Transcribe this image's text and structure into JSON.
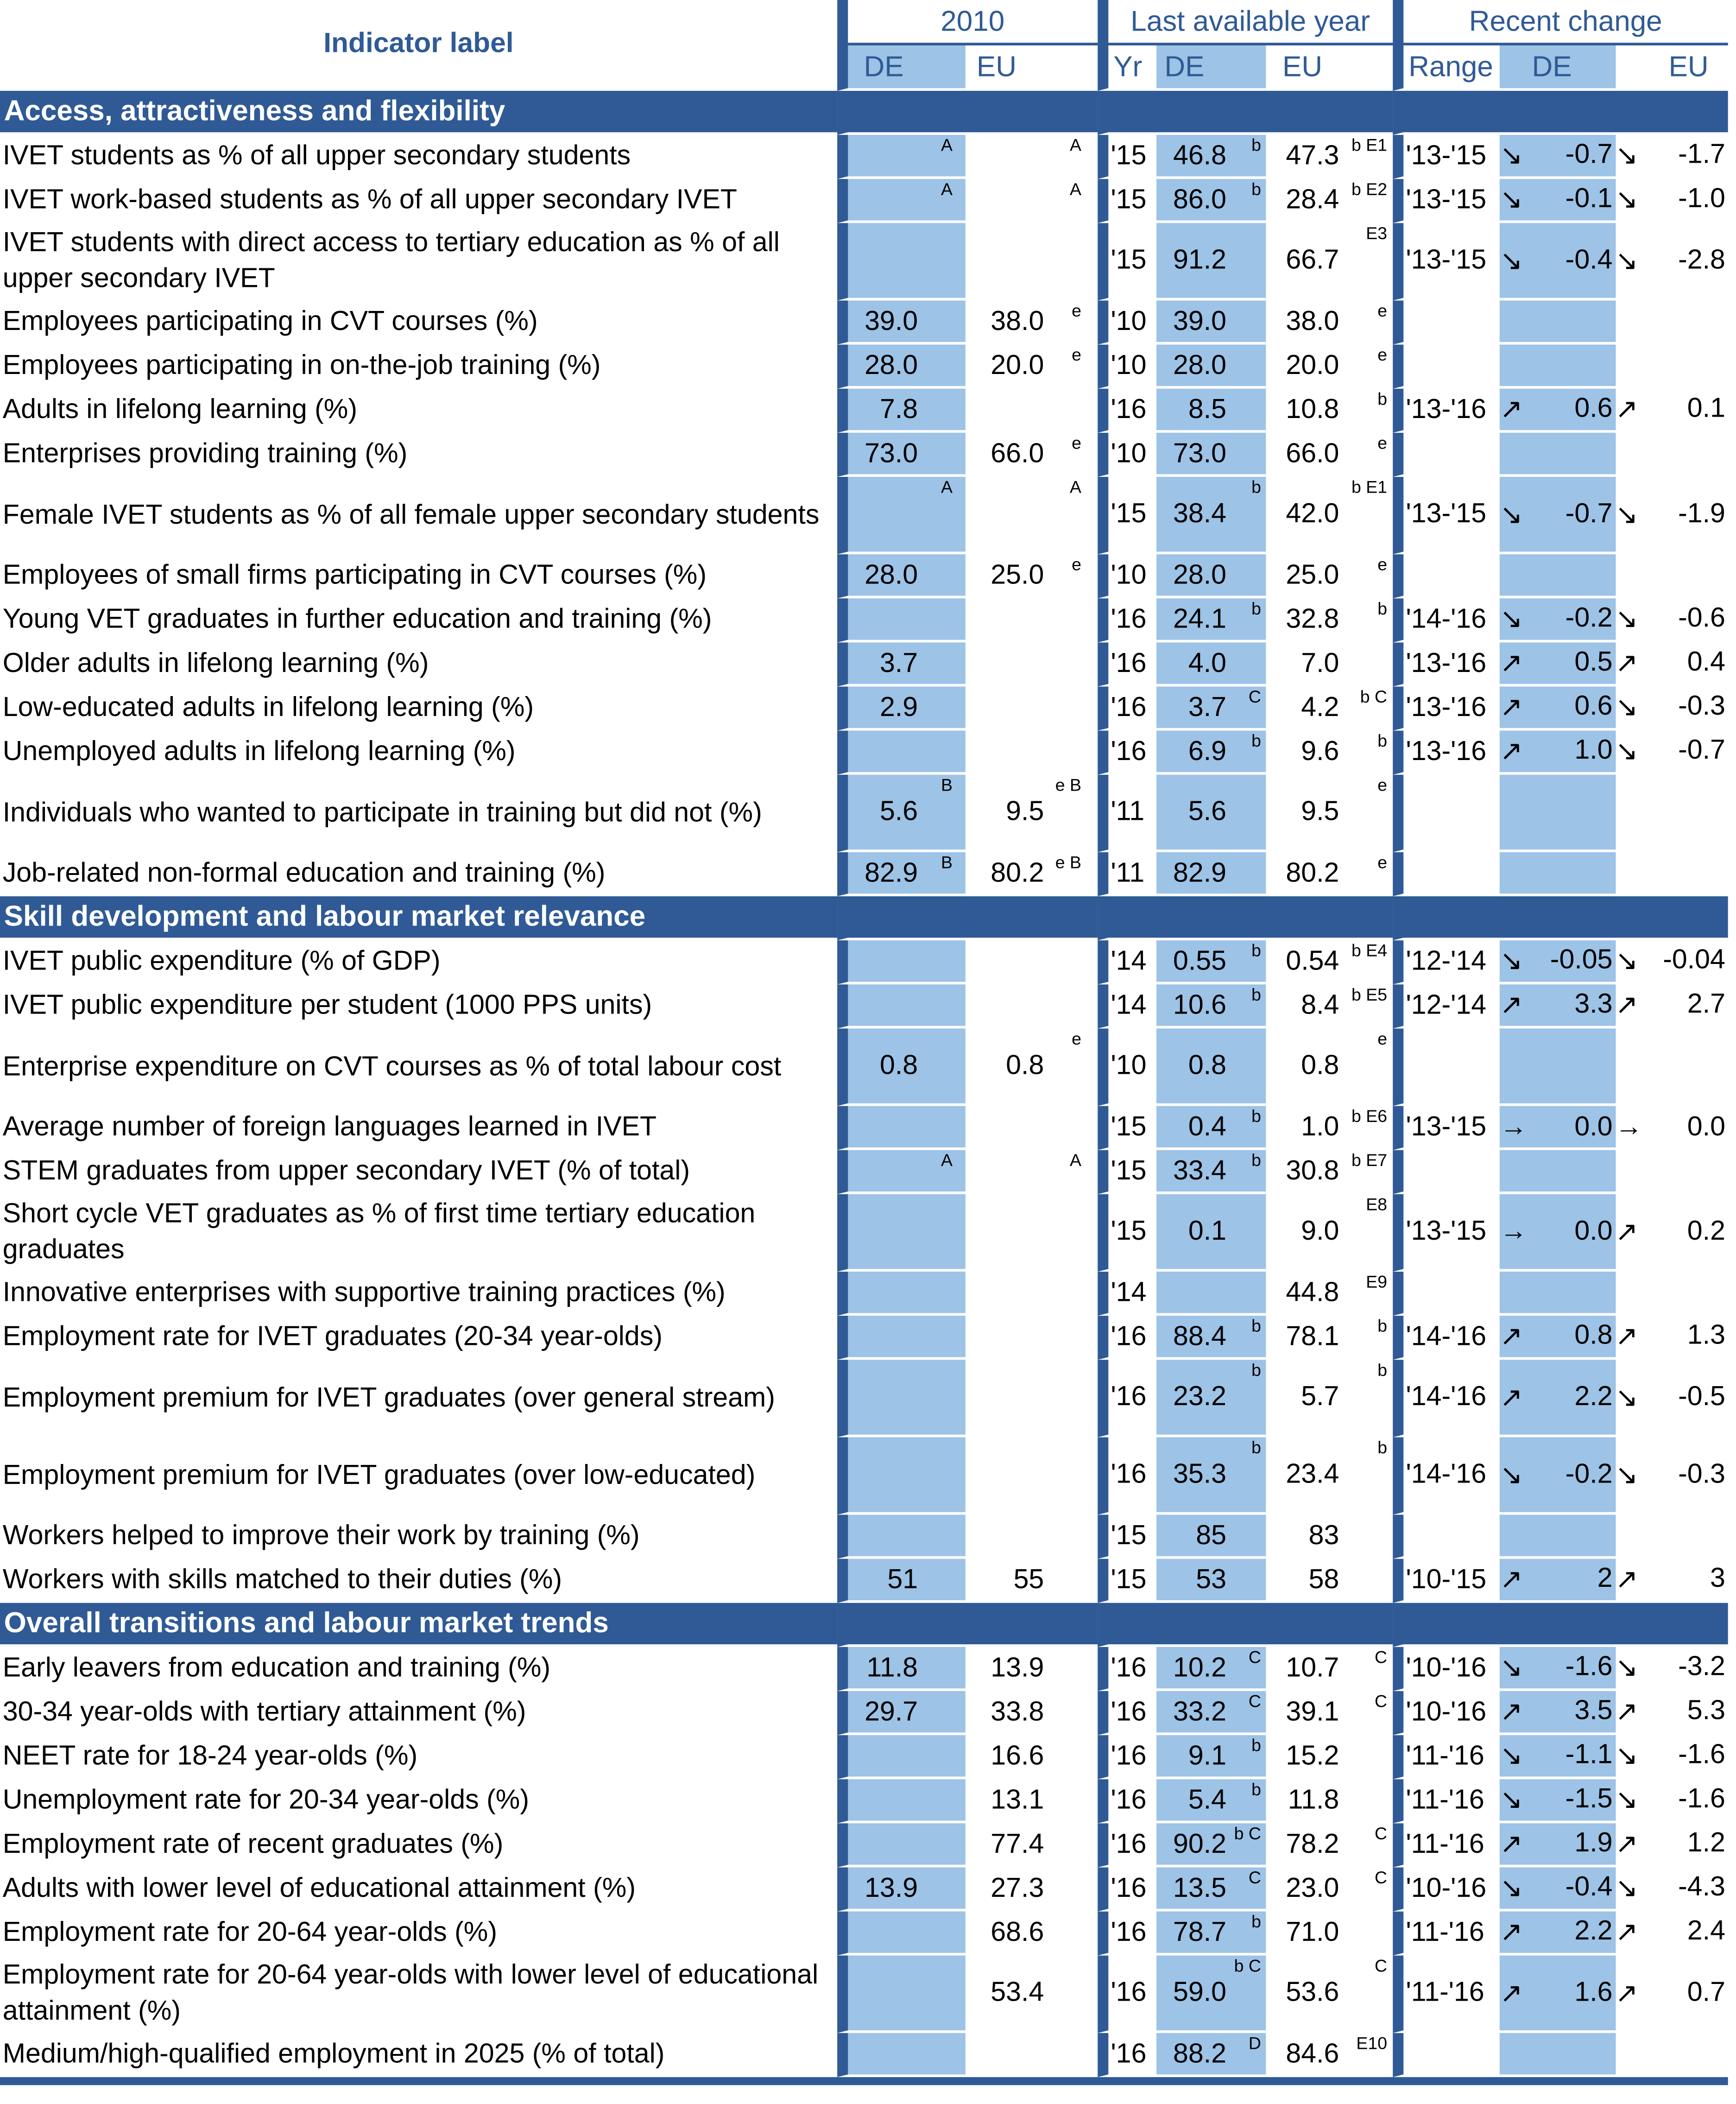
{
  "header": {
    "indicator_label": "Indicator label",
    "group_2010": "2010",
    "group_last": "Last available year",
    "group_recent": "Recent change",
    "sub_de": "DE",
    "sub_eu": "EU",
    "sub_yr": "Yr",
    "sub_range": "Range"
  },
  "sections": [
    {
      "title": "Access, attractiveness and flexibility",
      "rows": [
        {
          "label": "IVET students as % of all upper secondary students",
          "de2010": "",
          "de2010_sup": "A",
          "eu2010": "",
          "eu2010_sup": "A",
          "yr": "'15",
          "de": "46.8",
          "de_sup": "b",
          "eu": "47.3",
          "eu_sup": "b E1",
          "range": "'13-'15",
          "de_arrow": "↘",
          "de_chg": "-0.7",
          "eu_arrow": "↘",
          "eu_chg": "-1.7"
        },
        {
          "label": "IVET work-based students as % of all upper secondary IVET",
          "de2010": "",
          "de2010_sup": "A",
          "eu2010": "",
          "eu2010_sup": "A",
          "yr": "'15",
          "de": "86.0",
          "de_sup": "b",
          "eu": "28.4",
          "eu_sup": "b E2",
          "range": "'13-'15",
          "de_arrow": "↘",
          "de_chg": "-0.1",
          "eu_arrow": "↘",
          "eu_chg": "-1.0"
        },
        {
          "label": "IVET students with direct access to tertiary education as % of all upper secondary IVET",
          "two": true,
          "de2010": "",
          "de2010_sup": "",
          "eu2010": "",
          "eu2010_sup": "",
          "yr": "'15",
          "de": "91.2",
          "de_sup": "",
          "eu": "66.7",
          "eu_sup": "E3",
          "range": "'13-'15",
          "de_arrow": "↘",
          "de_chg": "-0.4",
          "eu_arrow": "↘",
          "eu_chg": "-2.8"
        },
        {
          "label": "Employees participating in CVT courses (%)",
          "de2010": "39.0",
          "de2010_sup": "",
          "eu2010": "38.0",
          "eu2010_sup": "e",
          "yr": "'10",
          "de": "39.0",
          "de_sup": "",
          "eu": "38.0",
          "eu_sup": "e",
          "range": "",
          "de_arrow": "",
          "de_chg": "",
          "eu_arrow": "",
          "eu_chg": ""
        },
        {
          "label": "Employees participating in on-the-job training (%)",
          "de2010": "28.0",
          "de2010_sup": "",
          "eu2010": "20.0",
          "eu2010_sup": "e",
          "yr": "'10",
          "de": "28.0",
          "de_sup": "",
          "eu": "20.0",
          "eu_sup": "e",
          "range": "",
          "de_arrow": "",
          "de_chg": "",
          "eu_arrow": "",
          "eu_chg": ""
        },
        {
          "label": "Adults in lifelong learning (%)",
          "de2010": "7.8",
          "de2010_sup": "",
          "eu2010": "",
          "eu2010_sup": "",
          "yr": "'16",
          "de": "8.5",
          "de_sup": "",
          "eu": "10.8",
          "eu_sup": "b",
          "range": "'13-'16",
          "de_arrow": "↗",
          "de_chg": "0.6",
          "eu_arrow": "↗",
          "eu_chg": "0.1"
        },
        {
          "label": "Enterprises providing training (%)",
          "de2010": "73.0",
          "de2010_sup": "",
          "eu2010": "66.0",
          "eu2010_sup": "e",
          "yr": "'10",
          "de": "73.0",
          "de_sup": "",
          "eu": "66.0",
          "eu_sup": "e",
          "range": "",
          "de_arrow": "",
          "de_chg": "",
          "eu_arrow": "",
          "eu_chg": ""
        },
        {
          "label": "Female IVET students as % of all female upper secondary students",
          "two": true,
          "de2010": "",
          "de2010_sup": "A",
          "eu2010": "",
          "eu2010_sup": "A",
          "yr": "'15",
          "de": "38.4",
          "de_sup": "b",
          "eu": "42.0",
          "eu_sup": "b E1",
          "range": "'13-'15",
          "de_arrow": "↘",
          "de_chg": "-0.7",
          "eu_arrow": "↘",
          "eu_chg": "-1.9"
        },
        {
          "label": "Employees of small firms participating in CVT courses (%)",
          "de2010": "28.0",
          "de2010_sup": "",
          "eu2010": "25.0",
          "eu2010_sup": "e",
          "yr": "'10",
          "de": "28.0",
          "de_sup": "",
          "eu": "25.0",
          "eu_sup": "e",
          "range": "",
          "de_arrow": "",
          "de_chg": "",
          "eu_arrow": "",
          "eu_chg": ""
        },
        {
          "label": "Young VET graduates in further education and training (%)",
          "de2010": "",
          "de2010_sup": "",
          "eu2010": "",
          "eu2010_sup": "",
          "yr": "'16",
          "de": "24.1",
          "de_sup": "b",
          "eu": "32.8",
          "eu_sup": "b",
          "range": "'14-'16",
          "de_arrow": "↘",
          "de_chg": "-0.2",
          "eu_arrow": "↘",
          "eu_chg": "-0.6"
        },
        {
          "label": "Older adults in lifelong learning (%)",
          "de2010": "3.7",
          "de2010_sup": "",
          "eu2010": "",
          "eu2010_sup": "",
          "yr": "'16",
          "de": "4.0",
          "de_sup": "",
          "eu": "7.0",
          "eu_sup": "",
          "range": "'13-'16",
          "de_arrow": "↗",
          "de_chg": "0.5",
          "eu_arrow": "↗",
          "eu_chg": "0.4"
        },
        {
          "label": "Low-educated adults in lifelong learning (%)",
          "de2010": "2.9",
          "de2010_sup": "",
          "eu2010": "",
          "eu2010_sup": "",
          "yr": "'16",
          "de": "3.7",
          "de_sup": "C",
          "eu": "4.2",
          "eu_sup": "b C",
          "range": "'13-'16",
          "de_arrow": "↗",
          "de_chg": "0.6",
          "eu_arrow": "↘",
          "eu_chg": "-0.3"
        },
        {
          "label": "Unemployed adults in lifelong learning (%)",
          "de2010": "",
          "de2010_sup": "",
          "eu2010": "",
          "eu2010_sup": "",
          "yr": "'16",
          "de": "6.9",
          "de_sup": "b",
          "eu": "9.6",
          "eu_sup": "b",
          "range": "'13-'16",
          "de_arrow": "↗",
          "de_chg": "1.0",
          "eu_arrow": "↘",
          "eu_chg": "-0.7"
        },
        {
          "label": "Individuals who wanted to participate in training but did not (%)",
          "two": true,
          "de2010": "5.6",
          "de2010_sup": "B",
          "eu2010": "9.5",
          "eu2010_sup": "e B",
          "yr": "'11",
          "de": "5.6",
          "de_sup": "",
          "eu": "9.5",
          "eu_sup": "e",
          "range": "",
          "de_arrow": "",
          "de_chg": "",
          "eu_arrow": "",
          "eu_chg": ""
        },
        {
          "label": "Job-related non-formal education and training (%)",
          "de2010": "82.9",
          "de2010_sup": "B",
          "eu2010": "80.2",
          "eu2010_sup": "e B",
          "yr": "'11",
          "de": "82.9",
          "de_sup": "",
          "eu": "80.2",
          "eu_sup": "e",
          "range": "",
          "de_arrow": "",
          "de_chg": "",
          "eu_arrow": "",
          "eu_chg": ""
        }
      ]
    },
    {
      "title": "Skill development and labour market relevance",
      "rows": [
        {
          "label": "IVET public expenditure (% of GDP)",
          "de2010": "",
          "de2010_sup": "",
          "eu2010": "",
          "eu2010_sup": "",
          "yr": "'14",
          "de": "0.55",
          "de_sup": "b",
          "eu": "0.54",
          "eu_sup": "b E4",
          "range": "'12-'14",
          "de_arrow": "↘",
          "de_chg": "-0.05",
          "eu_arrow": "↘",
          "eu_chg": "-0.04"
        },
        {
          "label": "IVET public expenditure per student (1000 PPS units)",
          "de2010": "",
          "de2010_sup": "",
          "eu2010": "",
          "eu2010_sup": "",
          "yr": "'14",
          "de": "10.6",
          "de_sup": "b",
          "eu": "8.4",
          "eu_sup": "b E5",
          "range": "'12-'14",
          "de_arrow": "↗",
          "de_chg": "3.3",
          "eu_arrow": "↗",
          "eu_chg": "2.7"
        },
        {
          "label": "Enterprise expenditure on CVT courses as % of total labour cost",
          "two": true,
          "de2010": "0.8",
          "de2010_sup": "",
          "eu2010": "0.8",
          "eu2010_sup": "e",
          "yr": "'10",
          "de": "0.8",
          "de_sup": "",
          "eu": "0.8",
          "eu_sup": "e",
          "range": "",
          "de_arrow": "",
          "de_chg": "",
          "eu_arrow": "",
          "eu_chg": ""
        },
        {
          "label": "Average number of foreign languages learned in IVET",
          "de2010": "",
          "de2010_sup": "",
          "eu2010": "",
          "eu2010_sup": "",
          "yr": "'15",
          "de": "0.4",
          "de_sup": "b",
          "eu": "1.0",
          "eu_sup": "b E6",
          "range": "'13-'15",
          "de_arrow": "→",
          "de_chg": "0.0",
          "eu_arrow": "→",
          "eu_chg": "0.0"
        },
        {
          "label": "STEM graduates from upper secondary IVET (% of total)",
          "de2010": "",
          "de2010_sup": "A",
          "eu2010": "",
          "eu2010_sup": "A",
          "yr": "'15",
          "de": "33.4",
          "de_sup": "b",
          "eu": "30.8",
          "eu_sup": "b E7",
          "range": "",
          "de_arrow": "",
          "de_chg": "",
          "eu_arrow": "",
          "eu_chg": ""
        },
        {
          "label": "Short cycle VET graduates as % of first time tertiary education graduates",
          "two": true,
          "de2010": "",
          "de2010_sup": "",
          "eu2010": "",
          "eu2010_sup": "",
          "yr": "'15",
          "de": "0.1",
          "de_sup": "",
          "eu": "9.0",
          "eu_sup": "E8",
          "range": "'13-'15",
          "de_arrow": "→",
          "de_chg": "0.0",
          "eu_arrow": "↗",
          "eu_chg": "0.2"
        },
        {
          "label": "Innovative enterprises with supportive training practices (%)",
          "de2010": "",
          "de2010_sup": "",
          "eu2010": "",
          "eu2010_sup": "",
          "yr": "'14",
          "de": "",
          "de_sup": "",
          "eu": "44.8",
          "eu_sup": "E9",
          "range": "",
          "de_arrow": "",
          "de_chg": "",
          "eu_arrow": "",
          "eu_chg": ""
        },
        {
          "label": "Employment rate for IVET graduates (20-34 year-olds)",
          "de2010": "",
          "de2010_sup": "",
          "eu2010": "",
          "eu2010_sup": "",
          "yr": "'16",
          "de": "88.4",
          "de_sup": "b",
          "eu": "78.1",
          "eu_sup": "b",
          "range": "'14-'16",
          "de_arrow": "↗",
          "de_chg": "0.8",
          "eu_arrow": "↗",
          "eu_chg": "1.3"
        },
        {
          "label": "Employment premium for IVET graduates (over general stream)",
          "two": true,
          "de2010": "",
          "de2010_sup": "",
          "eu2010": "",
          "eu2010_sup": "",
          "yr": "'16",
          "de": "23.2",
          "de_sup": "b",
          "eu": "5.7",
          "eu_sup": "b",
          "range": "'14-'16",
          "de_arrow": "↗",
          "de_chg": "2.2",
          "eu_arrow": "↘",
          "eu_chg": "-0.5"
        },
        {
          "label": "Employment premium for IVET graduates (over low-educated)",
          "two": true,
          "de2010": "",
          "de2010_sup": "",
          "eu2010": "",
          "eu2010_sup": "",
          "yr": "'16",
          "de": "35.3",
          "de_sup": "b",
          "eu": "23.4",
          "eu_sup": "b",
          "range": "'14-'16",
          "de_arrow": "↘",
          "de_chg": "-0.2",
          "eu_arrow": "↘",
          "eu_chg": "-0.3"
        },
        {
          "label": "Workers helped to improve their work by training (%)",
          "de2010": "",
          "de2010_sup": "",
          "eu2010": "",
          "eu2010_sup": "",
          "yr": "'15",
          "de": "85",
          "de_sup": "",
          "eu": "83",
          "eu_sup": "",
          "range": "",
          "de_arrow": "",
          "de_chg": "",
          "eu_arrow": "",
          "eu_chg": ""
        },
        {
          "label": "Workers with skills matched to their duties (%)",
          "de2010": "51",
          "de2010_sup": "",
          "eu2010": "55",
          "eu2010_sup": "",
          "yr": "'15",
          "de": "53",
          "de_sup": "",
          "eu": "58",
          "eu_sup": "",
          "range": "'10-'15",
          "de_arrow": "↗",
          "de_chg": "2",
          "eu_arrow": "↗",
          "eu_chg": "3"
        }
      ]
    },
    {
      "title": "Overall transitions and labour market trends",
      "rows": [
        {
          "label": "Early leavers from education and training (%)",
          "de2010": "11.8",
          "de2010_sup": "",
          "eu2010": "13.9",
          "eu2010_sup": "",
          "yr": "'16",
          "de": "10.2",
          "de_sup": "C",
          "eu": "10.7",
          "eu_sup": "C",
          "range": "'10-'16",
          "de_arrow": "↘",
          "de_chg": "-1.6",
          "eu_arrow": "↘",
          "eu_chg": "-3.2"
        },
        {
          "label": "30-34 year-olds with tertiary attainment (%)",
          "de2010": "29.7",
          "de2010_sup": "",
          "eu2010": "33.8",
          "eu2010_sup": "",
          "yr": "'16",
          "de": "33.2",
          "de_sup": "C",
          "eu": "39.1",
          "eu_sup": "C",
          "range": "'10-'16",
          "de_arrow": "↗",
          "de_chg": "3.5",
          "eu_arrow": "↗",
          "eu_chg": "5.3"
        },
        {
          "label": "NEET rate for 18-24 year-olds (%)",
          "de2010": "",
          "de2010_sup": "",
          "eu2010": "16.6",
          "eu2010_sup": "",
          "yr": "'16",
          "de": "9.1",
          "de_sup": "b",
          "eu": "15.2",
          "eu_sup": "",
          "range": "'11-'16",
          "de_arrow": "↘",
          "de_chg": "-1.1",
          "eu_arrow": "↘",
          "eu_chg": "-1.6"
        },
        {
          "label": "Unemployment rate for 20-34 year-olds (%)",
          "de2010": "",
          "de2010_sup": "",
          "eu2010": "13.1",
          "eu2010_sup": "",
          "yr": "'16",
          "de": "5.4",
          "de_sup": "b",
          "eu": "11.8",
          "eu_sup": "",
          "range": "'11-'16",
          "de_arrow": "↘",
          "de_chg": "-1.5",
          "eu_arrow": "↘",
          "eu_chg": "-1.6"
        },
        {
          "label": "Employment rate of recent graduates (%)",
          "de2010": "",
          "de2010_sup": "",
          "eu2010": "77.4",
          "eu2010_sup": "",
          "yr": "'16",
          "de": "90.2",
          "de_sup": "b C",
          "eu": "78.2",
          "eu_sup": "C",
          "range": "'11-'16",
          "de_arrow": "↗",
          "de_chg": "1.9",
          "eu_arrow": "↗",
          "eu_chg": "1.2"
        },
        {
          "label": "Adults with lower level of educational attainment (%)",
          "de2010": "13.9",
          "de2010_sup": "",
          "eu2010": "27.3",
          "eu2010_sup": "",
          "yr": "'16",
          "de": "13.5",
          "de_sup": "C",
          "eu": "23.0",
          "eu_sup": "C",
          "range": "'10-'16",
          "de_arrow": "↘",
          "de_chg": "-0.4",
          "eu_arrow": "↘",
          "eu_chg": "-4.3"
        },
        {
          "label": "Employment rate for 20-64 year-olds (%)",
          "de2010": "",
          "de2010_sup": "",
          "eu2010": "68.6",
          "eu2010_sup": "",
          "yr": "'16",
          "de": "78.7",
          "de_sup": "b",
          "eu": "71.0",
          "eu_sup": "",
          "range": "'11-'16",
          "de_arrow": "↗",
          "de_chg": "2.2",
          "eu_arrow": "↗",
          "eu_chg": "2.4"
        },
        {
          "label": "Employment rate for 20-64 year-olds with lower level of educational attainment (%)",
          "two": true,
          "de2010": "",
          "de2010_sup": "",
          "eu2010": "53.4",
          "eu2010_sup": "",
          "yr": "'16",
          "de": "59.0",
          "de_sup": "b C",
          "eu": "53.6",
          "eu_sup": "C",
          "range": "'11-'16",
          "de_arrow": "↗",
          "de_chg": "1.6",
          "eu_arrow": "↗",
          "eu_chg": "0.7"
        },
        {
          "label": "Medium/high-qualified employment in 2025 (% of total)",
          "de2010": "",
          "de2010_sup": "",
          "eu2010": "",
          "eu2010_sup": "",
          "yr": "'16",
          "de": "88.2",
          "de_sup": "D",
          "eu": "84.6",
          "eu_sup": "E10",
          "range": "",
          "de_arrow": "",
          "de_chg": "",
          "eu_arrow": "",
          "eu_chg": ""
        }
      ]
    }
  ]
}
